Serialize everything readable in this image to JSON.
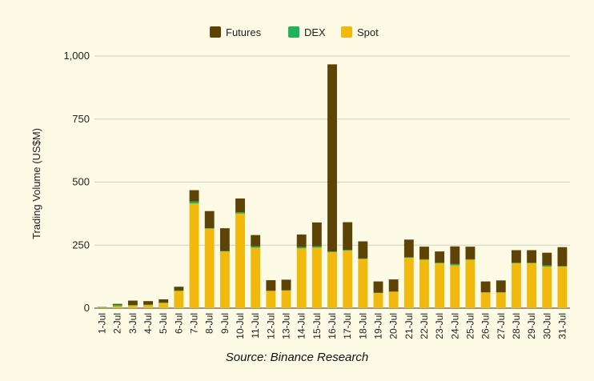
{
  "chart_data": {
    "type": "bar",
    "stacked": true,
    "ylabel": "Trading Volume (US$M)",
    "ylim": [
      0,
      1000
    ],
    "yticks": [
      0,
      250,
      500,
      750,
      1000
    ],
    "ytick_labels": [
      "0",
      "250",
      "500",
      "750",
      "1,000"
    ],
    "grid": true,
    "legend_position": "top-center",
    "categories": [
      "1-Jul",
      "2-Jul",
      "3-Jul",
      "4-Jul",
      "5-Jul",
      "6-Jul",
      "7-Jul",
      "8-Jul",
      "9-Jul",
      "10-Jul",
      "11-Jul",
      "12-Jul",
      "13-Jul",
      "14-Jul",
      "15-Jul",
      "16-Jul",
      "17-Jul",
      "18-Jul",
      "19-Jul",
      "20-Jul",
      "21-Jul",
      "22-Jul",
      "23-Jul",
      "24-Jul",
      "25-Jul",
      "26-Jul",
      "27-Jul",
      "28-Jul",
      "29-Jul",
      "30-Jul",
      "31-Jul"
    ],
    "series": [
      {
        "name": "Spot",
        "color": "#f0b90b",
        "values": [
          2,
          8,
          10,
          12,
          20,
          68,
          415,
          315,
          225,
          375,
          240,
          68,
          70,
          237,
          240,
          222,
          228,
          195,
          60,
          65,
          200,
          192,
          178,
          170,
          192,
          62,
          62,
          178,
          178,
          165,
          165
        ]
      },
      {
        "name": "DEX",
        "color": "#1fb35a",
        "values": [
          2,
          5,
          2,
          2,
          2,
          2,
          8,
          2,
          2,
          5,
          5,
          1,
          1,
          5,
          5,
          3,
          3,
          2,
          1,
          1,
          2,
          2,
          2,
          5,
          2,
          1,
          1,
          2,
          2,
          5,
          2
        ]
      },
      {
        "name": "Futures",
        "color": "#5e4306",
        "values": [
          1,
          4,
          18,
          14,
          13,
          15,
          45,
          68,
          90,
          55,
          45,
          42,
          42,
          50,
          95,
          742,
          110,
          68,
          45,
          48,
          70,
          50,
          45,
          70,
          50,
          43,
          47,
          50,
          50,
          50,
          75
        ]
      }
    ],
    "legend_order": [
      "Futures",
      "DEX",
      "Spot"
    ]
  },
  "source": "Source: Binance Research"
}
